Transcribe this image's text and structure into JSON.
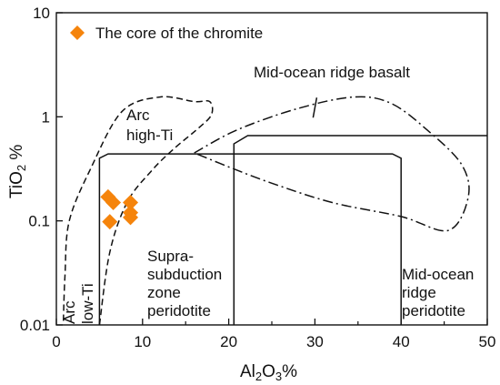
{
  "chart_data": {
    "type": "scatter",
    "title": "",
    "xlabel": {
      "main": "Al",
      "sub1": "2",
      "mid": "O",
      "sub2": "3",
      "unit": "%"
    },
    "ylabel": {
      "main": "TiO",
      "sub": "2",
      "unit": " %"
    },
    "xlim": [
      0,
      50
    ],
    "ylim": [
      0.01,
      10
    ],
    "yscale": "log",
    "x_ticks": [
      "0",
      "10",
      "20",
      "30",
      "40",
      "50"
    ],
    "y_ticks": [
      "0.01",
      "0.1",
      "1",
      "10"
    ],
    "grid": false,
    "legend": {
      "placement": "top-left",
      "label": "The core of the chromite",
      "marker": "diamond",
      "color": "#f5840c"
    },
    "series": [
      {
        "name": "The core of the chromite",
        "color": "#f5840c",
        "marker": "diamond",
        "points": [
          {
            "x": 6.0,
            "y": 0.17
          },
          {
            "x": 6.6,
            "y": 0.15
          },
          {
            "x": 8.6,
            "y": 0.15
          },
          {
            "x": 8.6,
            "y": 0.12
          },
          {
            "x": 8.6,
            "y": 0.108
          },
          {
            "x": 6.2,
            "y": 0.098
          }
        ]
      }
    ],
    "fields": [
      {
        "name": "Arc high-Ti",
        "style": "dashed",
        "path": [
          [
            5.0,
            0.01
          ],
          [
            6.2,
            0.05
          ],
          [
            8.2,
            0.15
          ],
          [
            11.0,
            0.3
          ],
          [
            13.6,
            0.49
          ],
          [
            16.5,
            0.78
          ],
          [
            18.0,
            1.05
          ],
          [
            17.8,
            1.4
          ],
          [
            16.0,
            1.4
          ],
          [
            12.0,
            1.55
          ],
          [
            7.6,
            1.12
          ],
          [
            4.0,
            0.32
          ],
          [
            1.5,
            0.1
          ],
          [
            1.0,
            0.03
          ],
          [
            0.8,
            0.01
          ]
        ]
      },
      {
        "name": "Mid-ocean ridge basalt",
        "style": "dashdot",
        "path": [
          [
            16.0,
            0.45
          ],
          [
            21.0,
            0.75
          ],
          [
            28.0,
            1.2
          ],
          [
            34.5,
            1.55
          ],
          [
            38.8,
            1.35
          ],
          [
            43.0,
            0.75
          ],
          [
            47.0,
            0.35
          ],
          [
            47.8,
            0.17
          ],
          [
            45.5,
            0.081
          ],
          [
            40.0,
            0.11
          ],
          [
            32.0,
            0.15
          ],
          [
            25.0,
            0.23
          ],
          [
            20.0,
            0.33
          ],
          [
            16.0,
            0.45
          ]
        ],
        "tick_mark": [
          30.0,
          1.2
        ]
      },
      {
        "name": "Supra-subduction zone peridotite",
        "style": "solid",
        "path": [
          [
            5.0,
            0.01
          ],
          [
            5.0,
            0.4
          ],
          [
            6.0,
            0.44
          ],
          [
            39.0,
            0.44
          ],
          [
            40.0,
            0.4
          ],
          [
            40.0,
            0.01
          ]
        ]
      },
      {
        "name": "Mid-ocean ridge peridotite",
        "style": "solid",
        "path": [
          [
            20.6,
            0.01
          ],
          [
            20.6,
            0.55
          ],
          [
            22.2,
            0.66
          ],
          [
            50.0,
            0.66
          ]
        ]
      }
    ],
    "annotations": [
      {
        "id": "arc-high-ti-1",
        "text": "Arc"
      },
      {
        "id": "arc-high-ti-2",
        "text": "high-Ti"
      },
      {
        "id": "morb",
        "text": "Mid-ocean ridge basalt"
      },
      {
        "id": "ssz-1",
        "text": "Supra-"
      },
      {
        "id": "ssz-2",
        "text": "subduction"
      },
      {
        "id": "ssz-3",
        "text": "zone"
      },
      {
        "id": "ssz-4",
        "text": "peridotite"
      },
      {
        "id": "mor-1",
        "text": "Mid-ocean"
      },
      {
        "id": "mor-2",
        "text": "ridge"
      },
      {
        "id": "mor-3",
        "text": "peridotite"
      },
      {
        "id": "arc-low-1",
        "text": "Arc"
      },
      {
        "id": "arc-low-2",
        "text": "low-Ti"
      }
    ]
  }
}
